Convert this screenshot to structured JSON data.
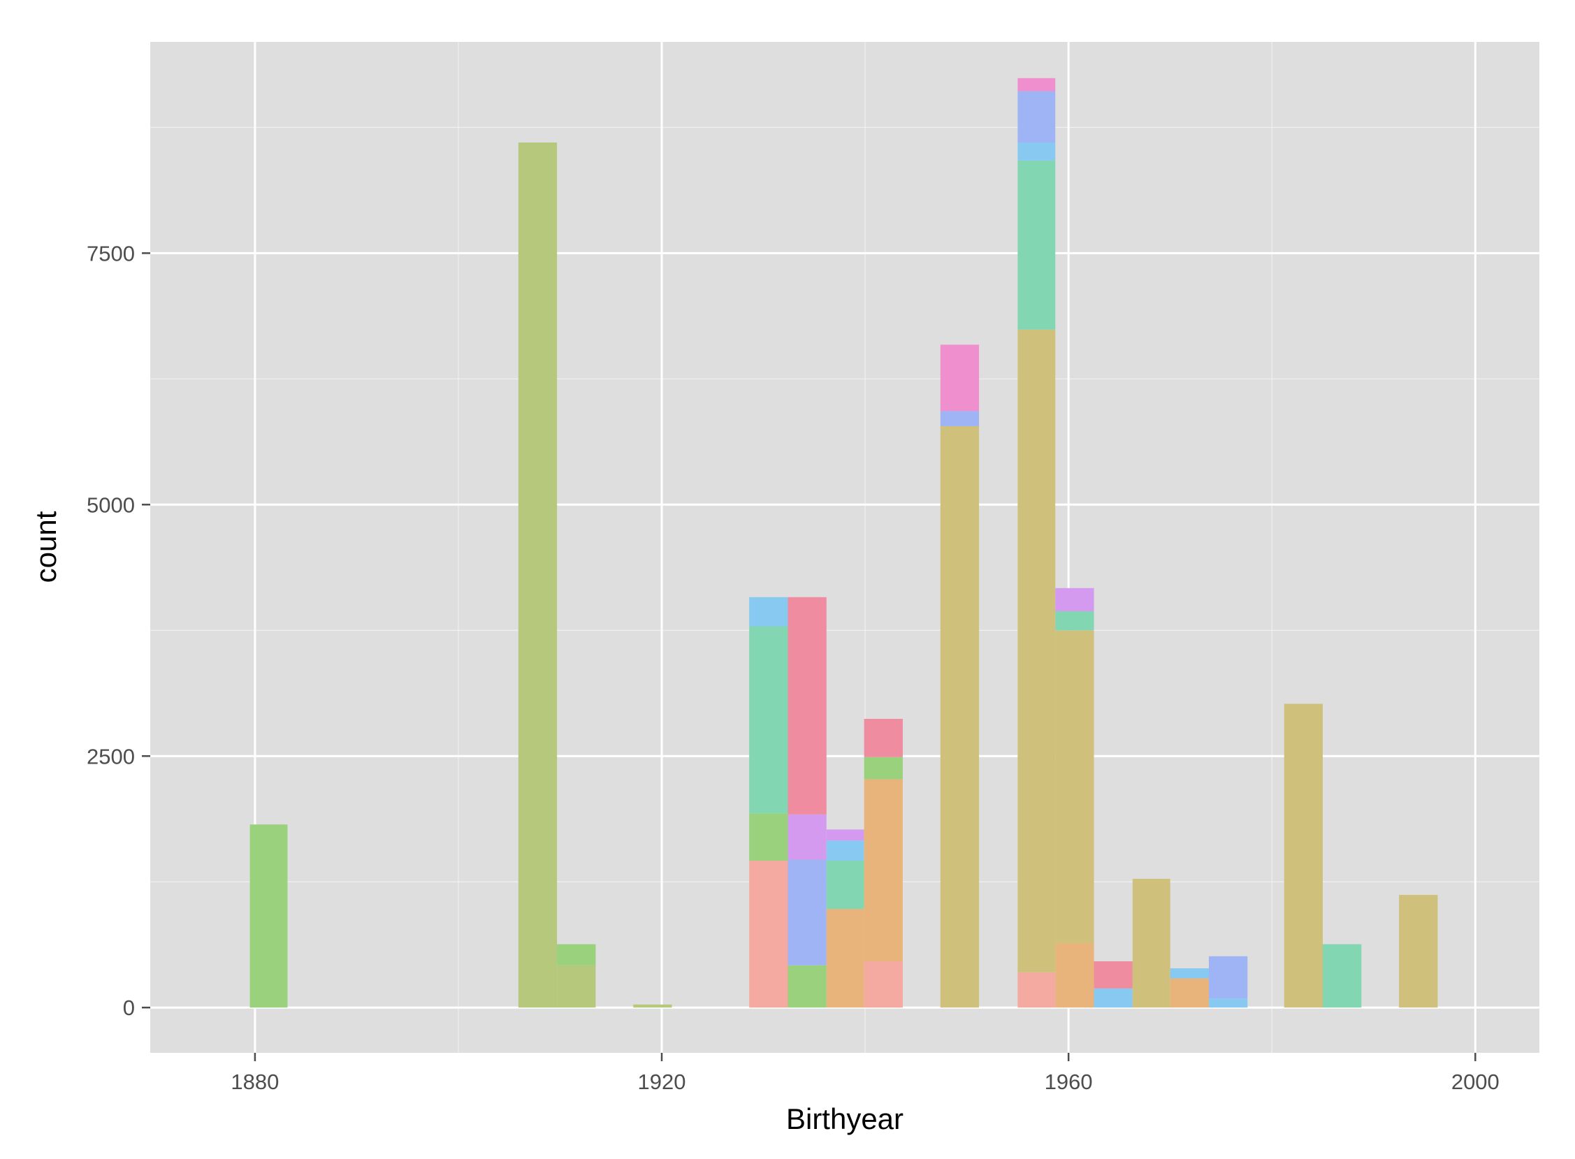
{
  "chart_data": {
    "type": "bar",
    "title": "",
    "xlabel": "Birthyear",
    "ylabel": "count",
    "xlim": [
      1869.7,
      2006.3
    ],
    "ylim": [
      -450,
      9600
    ],
    "x_ticks": [
      1880,
      1920,
      1960,
      2000
    ],
    "x_tick_labels": [
      "1880",
      "1920",
      "1960",
      "2000"
    ],
    "y_ticks": [
      0,
      2500,
      5000,
      7500
    ],
    "y_tick_labels": [
      "0",
      "2500",
      "5000",
      "7500"
    ],
    "y_minor_ticks": [
      1250,
      3750,
      6250,
      8750
    ],
    "x_minor_ticks": [
      1900,
      1940,
      1980
    ],
    "grid": true,
    "legend": "none",
    "colors": {
      "panel_background": "#dedede",
      "grid_major": "#ffffff",
      "grid_minor": "#f0f0f0",
      "c_pink": "#f4a9a1",
      "c_rose": "#f08ca0",
      "c_magenta": "#f08fce",
      "c_lavender": "#d49af0",
      "c_periwinkle": "#9fb4f4",
      "c_sky": "#87c9f0",
      "c_teal": "#82d6b2",
      "c_green": "#99d17c",
      "c_olive": "#b5c87c",
      "c_khaki": "#cfc07c",
      "c_tan": "#e8b47c"
    },
    "bins": [
      {
        "x0": 1879.5,
        "x1": 1883.2,
        "segments": [
          {
            "color": "c_green",
            "y0": 0,
            "y1": 1820
          }
        ]
      },
      {
        "x0": 1905.9,
        "x1": 1909.7,
        "segments": [
          {
            "color": "c_olive",
            "y0": 0,
            "y1": 8600
          }
        ]
      },
      {
        "x0": 1909.7,
        "x1": 1913.5,
        "segments": [
          {
            "color": "c_olive",
            "y0": 0,
            "y1": 420
          },
          {
            "color": "c_green",
            "y0": 420,
            "y1": 630
          }
        ]
      },
      {
        "x0": 1917.2,
        "x1": 1921.0,
        "segments": [
          {
            "color": "c_olive",
            "y0": 0,
            "y1": 30
          }
        ]
      },
      {
        "x0": 1928.6,
        "x1": 1932.4,
        "segments": [
          {
            "color": "c_pink",
            "y0": 0,
            "y1": 1460
          },
          {
            "color": "c_green",
            "y0": 1460,
            "y1": 1930
          },
          {
            "color": "c_teal",
            "y0": 1930,
            "y1": 3790
          },
          {
            "color": "c_sky",
            "y0": 3790,
            "y1": 4080
          }
        ]
      },
      {
        "x0": 1932.4,
        "x1": 1936.2,
        "segments": [
          {
            "color": "c_green",
            "y0": 0,
            "y1": 420
          },
          {
            "color": "c_periwinkle",
            "y0": 420,
            "y1": 1470
          },
          {
            "color": "c_lavender",
            "y0": 1470,
            "y1": 1920
          },
          {
            "color": "c_rose",
            "y0": 1920,
            "y1": 4080
          }
        ]
      },
      {
        "x0": 1936.2,
        "x1": 1939.9,
        "segments": [
          {
            "color": "c_tan",
            "y0": 0,
            "y1": 980
          },
          {
            "color": "c_teal",
            "y0": 980,
            "y1": 1460
          },
          {
            "color": "c_sky",
            "y0": 1460,
            "y1": 1660
          },
          {
            "color": "c_lavender",
            "y0": 1660,
            "y1": 1770
          }
        ]
      },
      {
        "x0": 1939.9,
        "x1": 1943.7,
        "segments": [
          {
            "color": "c_pink",
            "y0": 0,
            "y1": 460
          },
          {
            "color": "c_tan",
            "y0": 460,
            "y1": 2270
          },
          {
            "color": "c_green",
            "y0": 2270,
            "y1": 2490
          },
          {
            "color": "c_rose",
            "y0": 2490,
            "y1": 2870
          }
        ]
      },
      {
        "x0": 1947.4,
        "x1": 1951.2,
        "segments": [
          {
            "color": "c_khaki",
            "y0": 0,
            "y1": 5780
          },
          {
            "color": "c_periwinkle",
            "y0": 5780,
            "y1": 5930
          },
          {
            "color": "c_magenta",
            "y0": 5930,
            "y1": 6590
          }
        ]
      },
      {
        "x0": 1955.0,
        "x1": 1958.7,
        "segments": [
          {
            "color": "c_pink",
            "y0": 0,
            "y1": 350
          },
          {
            "color": "c_khaki",
            "y0": 350,
            "y1": 6740
          },
          {
            "color": "c_teal",
            "y0": 6740,
            "y1": 8420
          },
          {
            "color": "c_sky",
            "y0": 8420,
            "y1": 8600
          },
          {
            "color": "c_periwinkle",
            "y0": 8600,
            "y1": 9110
          },
          {
            "color": "c_magenta",
            "y0": 9110,
            "y1": 9240
          }
        ]
      },
      {
        "x0": 1958.7,
        "x1": 1962.5,
        "segments": [
          {
            "color": "c_tan",
            "y0": 0,
            "y1": 640
          },
          {
            "color": "c_khaki",
            "y0": 640,
            "y1": 3750
          },
          {
            "color": "c_teal",
            "y0": 3750,
            "y1": 3940
          },
          {
            "color": "c_lavender",
            "y0": 3940,
            "y1": 4170
          }
        ]
      },
      {
        "x0": 1962.5,
        "x1": 1966.3,
        "segments": [
          {
            "color": "c_sky",
            "y0": 0,
            "y1": 190
          },
          {
            "color": "c_rose",
            "y0": 190,
            "y1": 460
          }
        ]
      },
      {
        "x0": 1966.3,
        "x1": 1970.0,
        "segments": [
          {
            "color": "c_khaki",
            "y0": 0,
            "y1": 1280
          }
        ]
      },
      {
        "x0": 1970.0,
        "x1": 1973.8,
        "segments": [
          {
            "color": "c_tan",
            "y0": 0,
            "y1": 290
          },
          {
            "color": "c_sky",
            "y0": 290,
            "y1": 390
          }
        ]
      },
      {
        "x0": 1973.8,
        "x1": 1977.6,
        "segments": [
          {
            "color": "c_sky",
            "y0": 0,
            "y1": 90
          },
          {
            "color": "c_periwinkle",
            "y0": 90,
            "y1": 510
          }
        ]
      },
      {
        "x0": 1981.2,
        "x1": 1985.0,
        "segments": [
          {
            "color": "c_khaki",
            "y0": 0,
            "y1": 3020
          }
        ]
      },
      {
        "x0": 1985.0,
        "x1": 1988.8,
        "segments": [
          {
            "color": "c_teal",
            "y0": 0,
            "y1": 630
          }
        ]
      },
      {
        "x0": 1992.5,
        "x1": 1996.3,
        "segments": [
          {
            "color": "c_khaki",
            "y0": 0,
            "y1": 1120
          }
        ]
      }
    ]
  }
}
